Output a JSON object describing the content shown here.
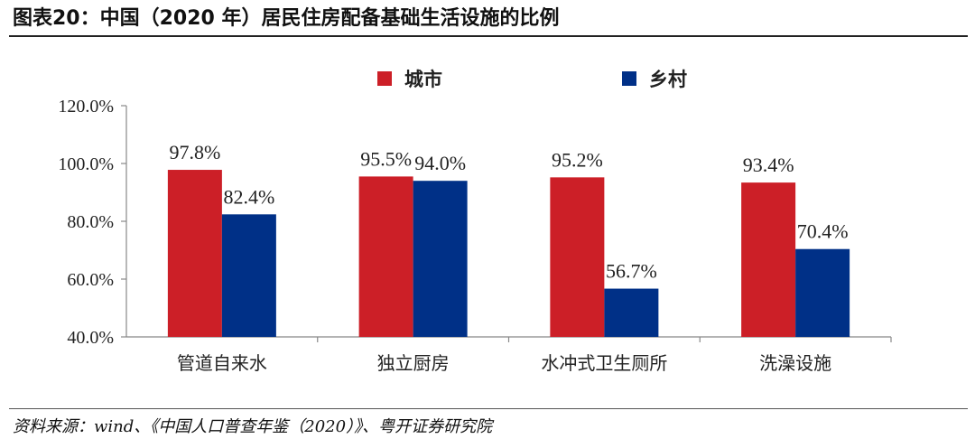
{
  "title": "图表20：中国（2020 年）居民住房配备基础生活设施的比例",
  "source": "资料来源：wind、《中国人口普查年鉴（2020）》、粤开证券研究院",
  "chart_data": {
    "type": "bar",
    "title": "图表20：中国（2020 年）居民住房配备基础生活设施的比例",
    "categories": [
      "管道自来水",
      "独立厨房",
      "水冲式卫生厕所",
      "洗澡设施"
    ],
    "series": [
      {
        "name": "城市",
        "color": "#CC1F27",
        "values": [
          97.8,
          95.5,
          95.2,
          93.4
        ],
        "labels": [
          "97.8%",
          "95.5%",
          "95.2%",
          "93.4%"
        ]
      },
      {
        "name": "乡村",
        "color": "#003087",
        "values": [
          82.4,
          94.0,
          56.7,
          70.4
        ],
        "labels": [
          "82.4%",
          "94.0%",
          "56.7%",
          "70.4%"
        ]
      }
    ],
    "ylim": [
      40,
      120
    ],
    "yticks": [
      40,
      60,
      80,
      100,
      120
    ],
    "ytick_labels": [
      "40.0%",
      "60.0%",
      "80.0%",
      "100.0%",
      "120.0%"
    ],
    "xlabel": "",
    "ylabel": "",
    "grid": false,
    "legend_position": "top"
  }
}
